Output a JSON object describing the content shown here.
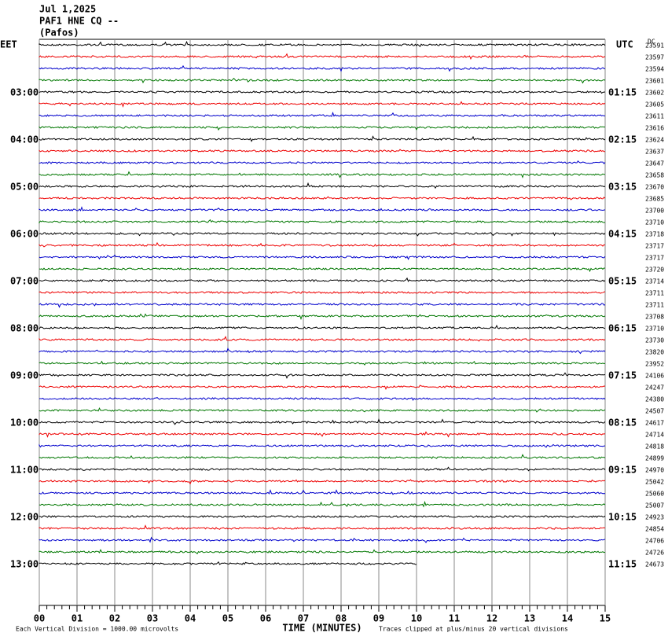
{
  "header": {
    "date": "Jul 1,2025",
    "station": "PAF1 HNE CQ --",
    "location": "(Pafos)"
  },
  "left": {
    "zone": "EET",
    "hours": [
      "03:00",
      "04:00",
      "05:00",
      "06:00",
      "07:00",
      "08:00",
      "09:00",
      "10:00",
      "11:00",
      "12:00",
      "13:00"
    ]
  },
  "right": {
    "zone": "UTC",
    "hours": [
      "01:15",
      "02:15",
      "03:15",
      "04:15",
      "05:15",
      "06:15",
      "07:15",
      "08:15",
      "09:15",
      "10:15",
      "11:15"
    ],
    "dc_label": "DC",
    "trace_dc": [
      23591,
      23597,
      23594,
      23601,
      23602,
      23605,
      23611,
      23616,
      23624,
      23637,
      23647,
      23658,
      23670,
      23685,
      23700,
      23710,
      23718,
      23717,
      23717,
      23720,
      23714,
      23711,
      23711,
      23708,
      23710,
      23730,
      23820,
      23952,
      24106,
      24247,
      24380,
      24507,
      24617,
      24714,
      24818,
      24899,
      24970,
      25042,
      25060,
      25007,
      24923,
      24854,
      24706,
      24726,
      24673
    ]
  },
  "x_axis": {
    "labels": [
      "00",
      "01",
      "02",
      "03",
      "04",
      "05",
      "06",
      "07",
      "08",
      "09",
      "10",
      "11",
      "12",
      "13",
      "14",
      "15"
    ],
    "title": "TIME (MINUTES)"
  },
  "footer": {
    "scale": "Each Vertical Division = 1000.00 microvolts",
    "clip": "Traces clipped at plus/minus 20 vertical divisions"
  }
}
